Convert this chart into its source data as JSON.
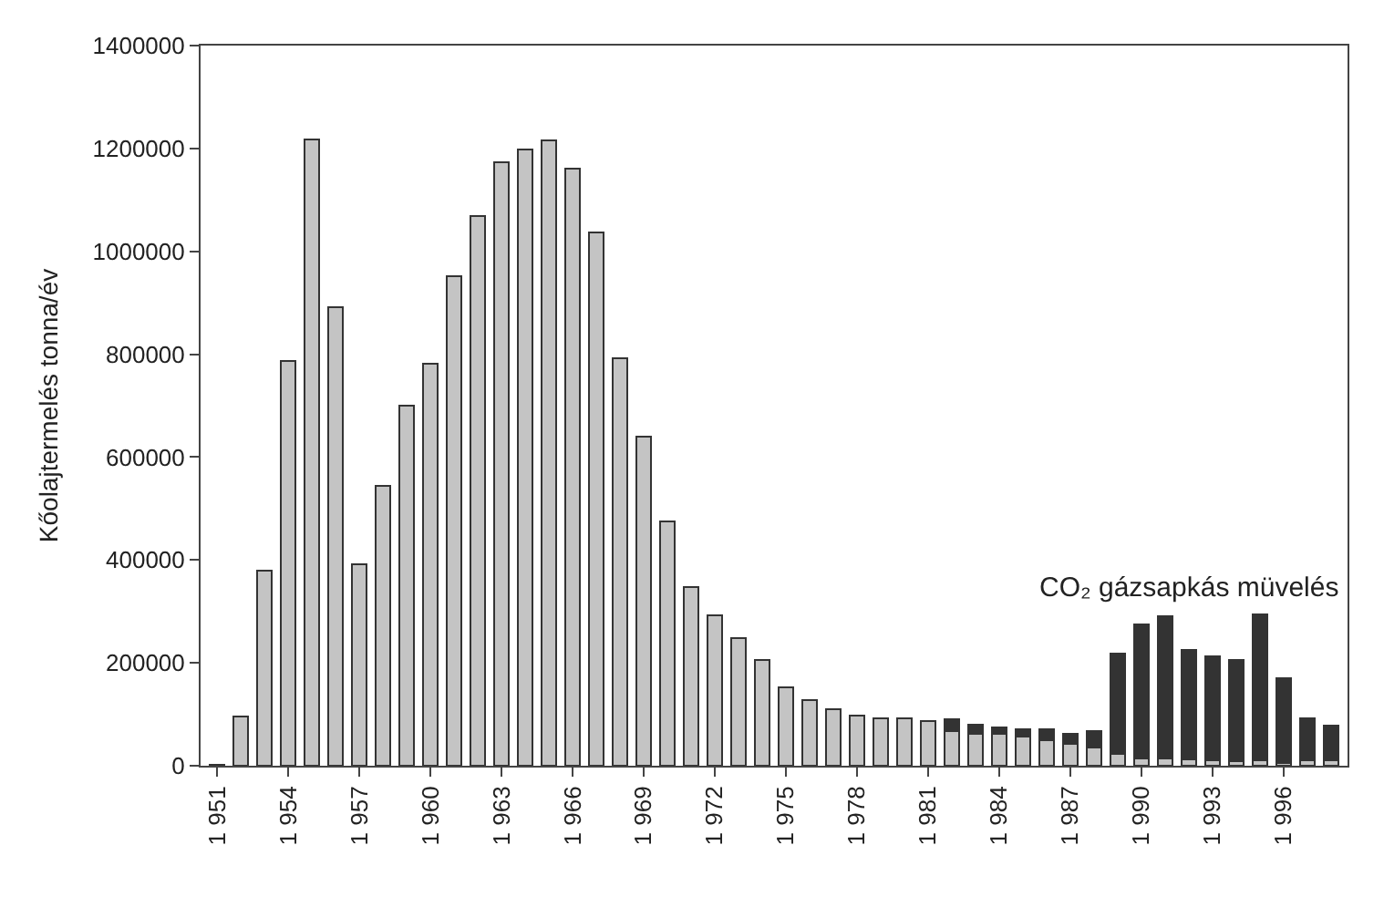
{
  "chart_data": {
    "type": "bar",
    "stacked": true,
    "ylabel": "Kőolajtermelés tonna/év",
    "categories": [
      "1 951",
      null,
      null,
      "1 954",
      null,
      null,
      "1 957",
      null,
      null,
      "1 960",
      null,
      null,
      "1 963",
      null,
      null,
      "1 966",
      null,
      null,
      "1 969",
      null,
      null,
      "1 972",
      null,
      null,
      "1 975",
      null,
      null,
      "1 978",
      null,
      null,
      "1 981",
      null,
      null,
      "1 984",
      null,
      null,
      "1 987",
      null,
      null,
      "1 990",
      null,
      null,
      "1 993",
      null,
      null,
      "1 996",
      null,
      null
    ],
    "series": [
      {
        "color": "#c4c4c4",
        "values": [
          2000,
          95000,
          380000,
          787000,
          1218000,
          891000,
          392000,
          544000,
          700000,
          781000,
          951000,
          1069000,
          1174000,
          1198000,
          1215000,
          1160000,
          1037000,
          792000,
          639000,
          475000,
          348000,
          292000,
          248000,
          205000,
          152000,
          128000,
          110000,
          97000,
          92000,
          92000,
          86000,
          68000,
          62000,
          62000,
          56000,
          50000,
          42000,
          36000,
          23000,
          14000,
          14000,
          12000,
          11000,
          8000,
          11000,
          5000,
          11000,
          11000
        ]
      },
      {
        "color": "#333333",
        "values": [
          null,
          null,
          null,
          null,
          null,
          null,
          null,
          null,
          null,
          null,
          null,
          null,
          null,
          null,
          null,
          null,
          null,
          null,
          null,
          null,
          null,
          null,
          null,
          null,
          null,
          null,
          null,
          null,
          null,
          null,
          null,
          23000,
          17000,
          13000,
          15000,
          21000,
          20000,
          32000,
          195000,
          261000,
          276000,
          213000,
          201000,
          198000,
          283000,
          166000,
          81000,
          67000
        ]
      }
    ],
    "ylim": [
      0,
      1400000
    ],
    "yticks": [
      0,
      200000,
      400000,
      600000,
      800000,
      1000000,
      1200000,
      1400000
    ],
    "grid": false,
    "annotations": [
      "CO₂ gázsapkás müvelés"
    ]
  }
}
